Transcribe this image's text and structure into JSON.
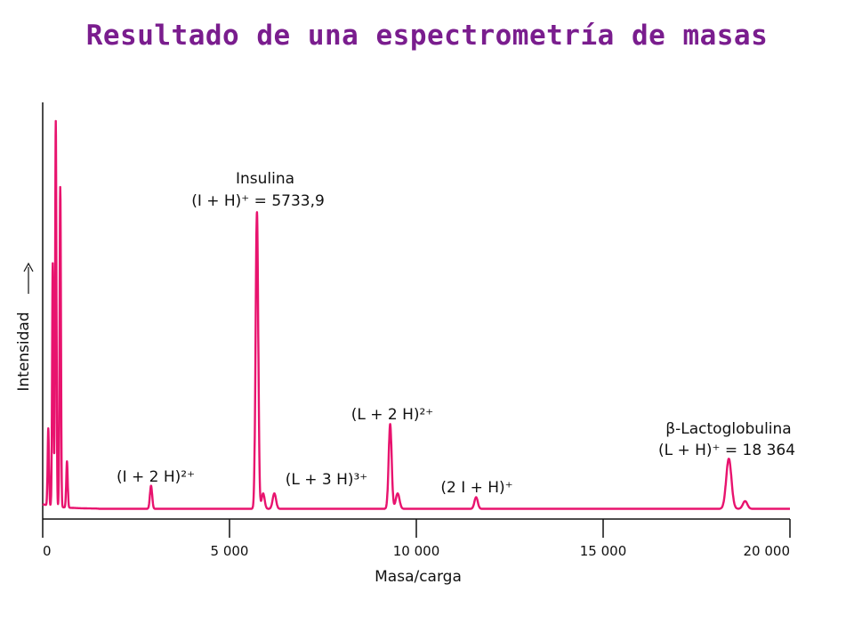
{
  "title": "Resultado de una espectrometría de masas",
  "colors": {
    "title": "#7a1d8e",
    "series": "#e8136e",
    "axis": "#111111"
  },
  "chart_data": {
    "type": "line",
    "title": "Resultado de una espectrometría de masas",
    "xlabel": "Masa/carga",
    "ylabel": "Intensidad",
    "xlim": [
      0,
      20000
    ],
    "ylim": [
      0,
      100
    ],
    "x_ticks": [
      {
        "value": 0,
        "label": "0"
      },
      {
        "value": 5000,
        "label": "5 000"
      },
      {
        "value": 10000,
        "label": "10 000"
      },
      {
        "value": 15000,
        "label": "15 000"
      },
      {
        "value": 20000,
        "label": "20 000"
      }
    ],
    "grid": false,
    "legend": "none",
    "peaks": [
      {
        "x": 150,
        "y": 20,
        "w": 18
      },
      {
        "x": 270,
        "y": 63,
        "w": 18
      },
      {
        "x": 350,
        "y": 100,
        "w": 18
      },
      {
        "x": 470,
        "y": 83,
        "w": 18
      },
      {
        "x": 650,
        "y": 12,
        "w": 20
      },
      {
        "x": 2900,
        "y": 6,
        "w": 30
      },
      {
        "x": 5733.9,
        "y": 77,
        "w": 35
      },
      {
        "x": 5900,
        "y": 4,
        "w": 40
      },
      {
        "x": 6200,
        "y": 4,
        "w": 45
      },
      {
        "x": 9300,
        "y": 22,
        "w": 40
      },
      {
        "x": 9500,
        "y": 4,
        "w": 50
      },
      {
        "x": 11600,
        "y": 3,
        "w": 45
      },
      {
        "x": 18364,
        "y": 13,
        "w": 70
      },
      {
        "x": 18800,
        "y": 2,
        "w": 60
      }
    ],
    "annotations": [
      {
        "id": "insulina-name",
        "text": "Insulina"
      },
      {
        "id": "insulina-value",
        "text": "(I + H)⁺ = 5733,9"
      },
      {
        "id": "i2h",
        "text": "(I + 2 H)²⁺"
      },
      {
        "id": "l3h",
        "text": "(L + 3 H)³⁺"
      },
      {
        "id": "l2h",
        "text": "(L + 2 H)²⁺"
      },
      {
        "id": "2ih",
        "text": "(2 I + H)⁺"
      },
      {
        "id": "lacto-name",
        "text": "β-Lactoglobulina"
      },
      {
        "id": "lacto-value",
        "text": "(L + H)⁺ = 18 364"
      }
    ]
  }
}
